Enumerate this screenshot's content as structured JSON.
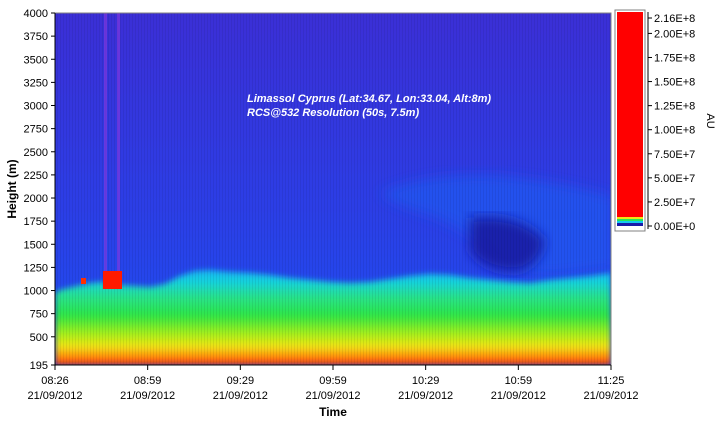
{
  "chart_data": {
    "type": "heatmap",
    "title": "",
    "annotation_lines": [
      "Limassol Cyprus (Lat:34.67, Lon:33.04, Alt:8m)",
      "RCS@532 Resolution (50s, 7.5m)"
    ],
    "xlabel": "Time",
    "ylabel": "Height (m)",
    "ylim": [
      195,
      4000
    ],
    "y_ticks": [
      195,
      500,
      750,
      1000,
      1250,
      1500,
      1750,
      2000,
      2250,
      2500,
      2750,
      3000,
      3250,
      3500,
      3750,
      4000
    ],
    "x_ticks": [
      {
        "time": "08:26",
        "date": "21/09/2012"
      },
      {
        "time": "08:59",
        "date": "21/09/2012"
      },
      {
        "time": "09:29",
        "date": "21/09/2012"
      },
      {
        "time": "09:59",
        "date": "21/09/2012"
      },
      {
        "time": "10:29",
        "date": "21/09/2012"
      },
      {
        "time": "10:59",
        "date": "21/09/2012"
      },
      {
        "time": "11:25",
        "date": "21/09/2012"
      }
    ],
    "colorbar": {
      "label": "AU",
      "ticks": [
        "0.00E+0",
        "2.50E+7",
        "5.00E+7",
        "7.50E+7",
        "1.00E+8",
        "1.25E+8",
        "1.50E+8",
        "1.75E+8",
        "2.00E+8",
        "2.16E+8"
      ],
      "tick_values": [
        0,
        25000000,
        50000000,
        75000000,
        100000000,
        125000000,
        150000000,
        175000000,
        200000000,
        216000000
      ],
      "range": [
        0,
        216000000
      ],
      "colors": [
        "#ffffff",
        "#1a1aa8",
        "#2f4cf0",
        "#14c8f0",
        "#26e65a",
        "#f0e614",
        "#ff8c00",
        "#ff0000"
      ]
    }
  }
}
